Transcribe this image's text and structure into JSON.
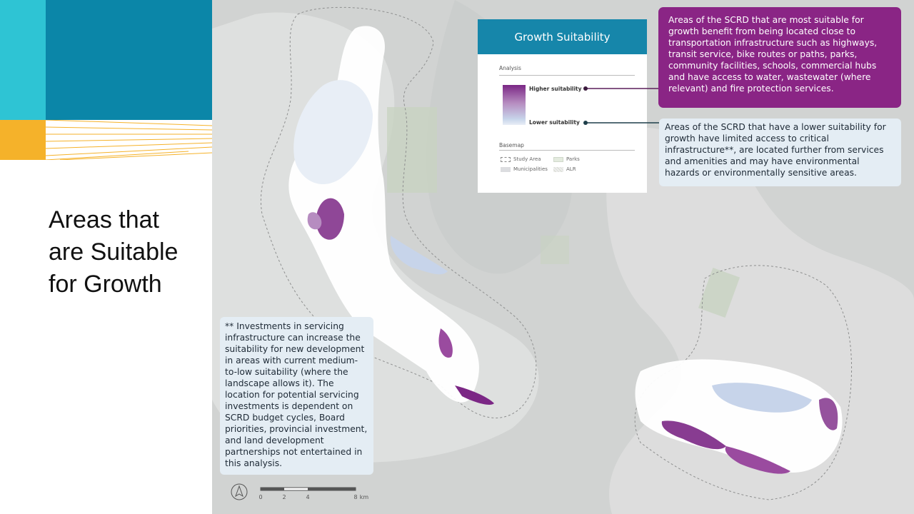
{
  "slide": {
    "title": "Areas that\nare Suitable\nfor Growth"
  },
  "legend": {
    "title": "Growth Suitability",
    "analysis_heading": "Analysis",
    "higher_label": "Higher suitability",
    "lower_label": "Lower suitability",
    "basemap_heading": "Basemap",
    "basemap_items": [
      "Study Area",
      "Parks",
      "Municipalities",
      "ALR"
    ]
  },
  "callouts": {
    "high": "Areas of the SCRD that are most suitable for growth benefit from being located close to transportation infrastructure such as highways, transit service, bike routes or paths, parks, community facilities, schools, commercial hubs and have access to water, wastewater (where relevant) and fire protection services.",
    "low": "Areas of the SCRD that have a lower suitability for growth have limited access to critical infrastructure**, are located further from services and amenities and may have environmental hazards or environmentally sensitive areas.",
    "note": "** Investments in servicing infrastructure can increase the suitability for new development in areas with current medium-to-low suitability (where the landscape allows it). The location for potential servicing investments is dependent on SCRD budget cycles, Board priorities, provincial investment, and land development partnerships not entertained in this analysis."
  },
  "scale_bar": {
    "ticks": [
      "0",
      "2",
      "4",
      "8"
    ],
    "unit": "km"
  },
  "colors": {
    "higher_suitability": "#7b2785",
    "lower_suitability": "#e8eef6",
    "legend_header": "#1686aa",
    "callout_high_bg": "#8a2585",
    "callout_low_bg": "#e4edf4",
    "accent_cyan": "#2ec4d4",
    "accent_blue": "#0b86a8",
    "accent_yellow": "#f5b22a"
  },
  "icons": {
    "north_arrow": "north-arrow-icon"
  }
}
